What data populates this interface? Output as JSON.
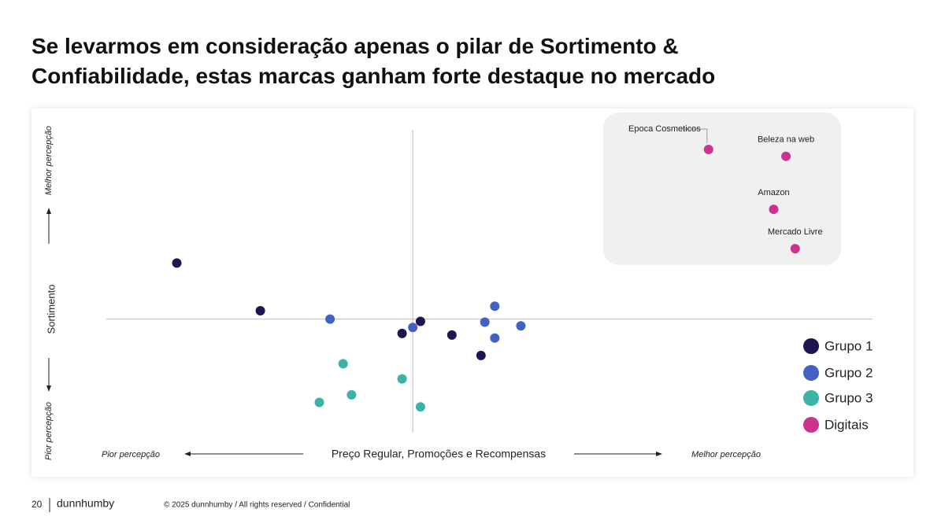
{
  "chart_data": {
    "type": "scatter",
    "title": "Se levarmos em consideração apenas o pilar de Sortimento & Confiabilidade, estas marcas ganham forte destaque no mercado",
    "x_label": "Preço Regular, Promoções e Recompensas",
    "y_label": "Sortimento",
    "x_low_label": "Pior percepção",
    "x_high_label": "Melhor percepção",
    "y_low_label": "Pior percepção",
    "y_high_label": "Melhor percepção",
    "xlim": [
      -40,
      60
    ],
    "ylim": [
      -15,
      25
    ],
    "series": [
      {
        "name": "Grupo 1",
        "color": "#1e1650",
        "x": [
          -30.8,
          -19.9,
          -1.4,
          1.0,
          5.1,
          8.9
        ],
        "values": [
          7.4,
          1.1,
          -1.9,
          -0.3,
          -2.1,
          -4.8
        ]
      },
      {
        "name": "Grupo 2",
        "color": "#4361c2",
        "x": [
          -10.8,
          0,
          9.4,
          10.7,
          10.7,
          14.1
        ],
        "values": [
          0,
          -1.1,
          -0.4,
          1.7,
          -2.5,
          -0.9
        ]
      },
      {
        "name": "Grupo 3",
        "color": "#3bb3a6",
        "x": [
          -9.1,
          -1.4,
          -8.0,
          -12.2,
          1.0
        ],
        "values": [
          -5.9,
          -7.9,
          -10.0,
          -11.0,
          -11.6
        ]
      },
      {
        "name": "Digitais",
        "color": "#cc3390",
        "x": [
          38.6,
          48.7,
          47.1,
          49.9
        ],
        "values": [
          22.4,
          21.5,
          14.5,
          9.3
        ],
        "point_labels": [
          "Epoca Cosmeticos",
          "Beleza na web",
          "Amazon",
          "Mercado Livre"
        ]
      }
    ]
  },
  "footer": {
    "page": "20",
    "brand": "dunnhumby",
    "copyright": "© 2025 dunnhumby / All rights reserved / Confidential"
  }
}
